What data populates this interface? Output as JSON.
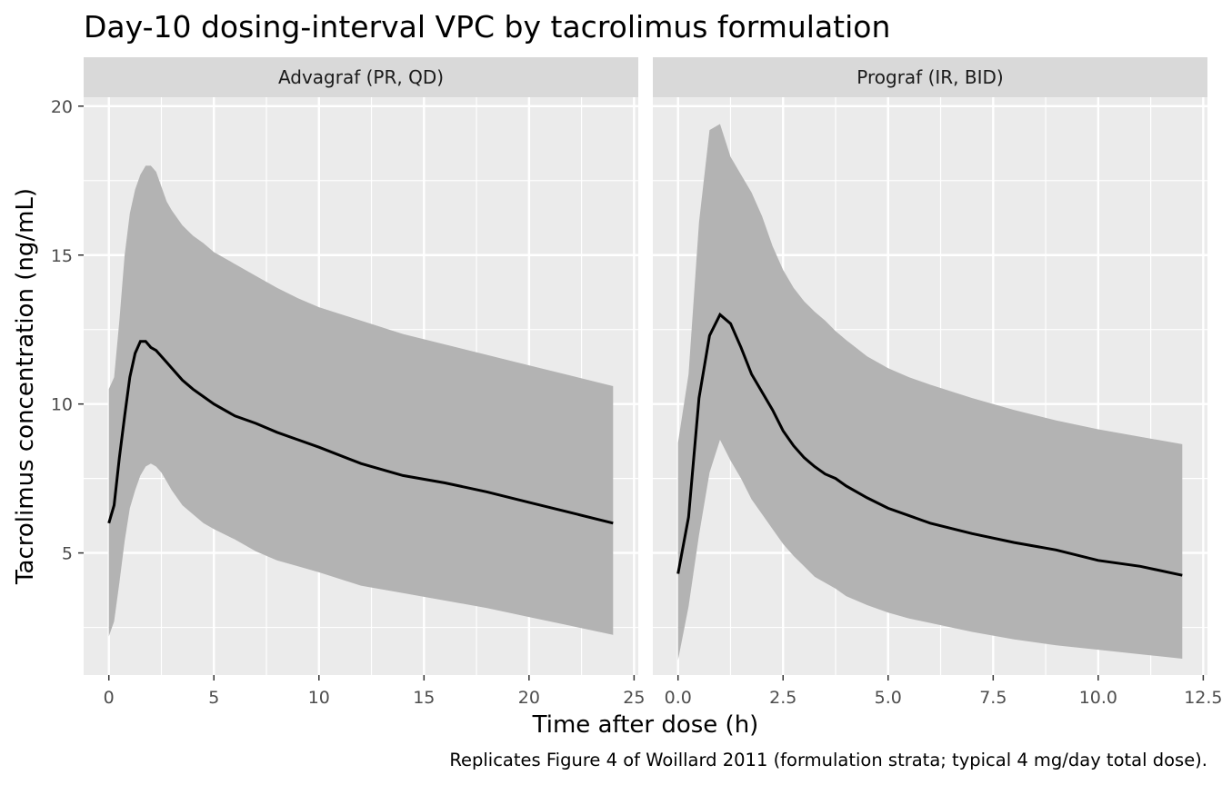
{
  "chart_data": {
    "type": "area",
    "title": "Day-10 dosing-interval VPC by tacrolimus formulation",
    "xlabel": "Time after dose (h)",
    "ylabel": "Tacrolimus concentration (ng/mL)",
    "caption": "Replicates Figure 4 of Woillard 2011 (formulation strata; typical 4 mg/day total dose).",
    "grid": true,
    "ylim": [
      0.9,
      20.3
    ],
    "yticks": [
      5,
      10,
      15,
      20
    ],
    "colors": {
      "panel": "#ebebeb",
      "strip": "#d9d9d9",
      "band": "#b3b3b3",
      "line": "#000000",
      "grid": "#ffffff"
    },
    "panels": [
      {
        "strip": "Advagraf (PR, QD)",
        "xlim": [
          -1.2,
          25.2
        ],
        "xticks": [
          0,
          5,
          10,
          15,
          20,
          25
        ],
        "xtick_labels": [
          "0",
          "5",
          "10",
          "15",
          "20",
          "25"
        ],
        "x": [
          0,
          0.25,
          0.5,
          0.75,
          1,
          1.25,
          1.5,
          1.75,
          2,
          2.25,
          2.5,
          2.75,
          3,
          3.5,
          4,
          4.5,
          5,
          6,
          7,
          8,
          9,
          10,
          12,
          14,
          16,
          18,
          20,
          22,
          24
        ],
        "median": [
          6.0,
          6.6,
          8.2,
          9.6,
          10.9,
          11.7,
          12.1,
          12.1,
          11.9,
          11.8,
          11.6,
          11.4,
          11.2,
          10.8,
          10.5,
          10.25,
          10.0,
          9.6,
          9.35,
          9.05,
          8.8,
          8.55,
          8.0,
          7.6,
          7.35,
          7.05,
          6.7,
          6.35,
          6.0
        ],
        "lower": [
          2.2,
          2.7,
          4.0,
          5.4,
          6.5,
          7.1,
          7.6,
          7.9,
          8.0,
          7.9,
          7.7,
          7.4,
          7.1,
          6.6,
          6.3,
          6.0,
          5.8,
          5.45,
          5.05,
          4.75,
          4.55,
          4.35,
          3.9,
          3.65,
          3.4,
          3.15,
          2.85,
          2.55,
          2.25
        ],
        "upper": [
          10.5,
          10.9,
          12.8,
          15.0,
          16.4,
          17.2,
          17.7,
          18.0,
          18.0,
          17.8,
          17.3,
          16.8,
          16.5,
          16.0,
          15.65,
          15.4,
          15.1,
          14.7,
          14.3,
          13.9,
          13.55,
          13.25,
          12.8,
          12.35,
          12.0,
          11.65,
          11.3,
          10.95,
          10.6
        ]
      },
      {
        "strip": "Prograf (IR, BID)",
        "xlim": [
          -0.6,
          12.6
        ],
        "xticks": [
          0,
          2.5,
          5,
          7.5,
          10,
          12.5
        ],
        "xtick_labels": [
          "0.0",
          "2.5",
          "5.0",
          "7.5",
          "10.0",
          "12.5"
        ],
        "x": [
          0,
          0.25,
          0.5,
          0.75,
          1,
          1.25,
          1.5,
          1.75,
          2,
          2.25,
          2.5,
          2.75,
          3,
          3.25,
          3.5,
          3.75,
          4,
          4.5,
          5,
          5.5,
          6,
          7,
          8,
          9,
          10,
          11,
          12
        ],
        "median": [
          4.3,
          6.2,
          10.2,
          12.3,
          13.0,
          12.7,
          11.9,
          11.0,
          10.4,
          9.8,
          9.1,
          8.6,
          8.2,
          7.9,
          7.65,
          7.5,
          7.25,
          6.85,
          6.5,
          6.25,
          6.0,
          5.65,
          5.35,
          5.1,
          4.75,
          4.55,
          4.25
        ],
        "lower": [
          1.4,
          3.2,
          5.6,
          7.7,
          8.8,
          8.1,
          7.5,
          6.8,
          6.3,
          5.8,
          5.3,
          4.9,
          4.55,
          4.2,
          4.0,
          3.8,
          3.55,
          3.25,
          3.0,
          2.8,
          2.65,
          2.35,
          2.1,
          1.9,
          1.75,
          1.6,
          1.45
        ],
        "upper": [
          8.7,
          11.0,
          16.1,
          19.2,
          19.4,
          18.3,
          17.7,
          17.1,
          16.3,
          15.3,
          14.5,
          13.9,
          13.45,
          13.1,
          12.8,
          12.45,
          12.15,
          11.6,
          11.2,
          10.9,
          10.65,
          10.2,
          9.8,
          9.45,
          9.15,
          8.9,
          8.65
        ]
      }
    ]
  }
}
